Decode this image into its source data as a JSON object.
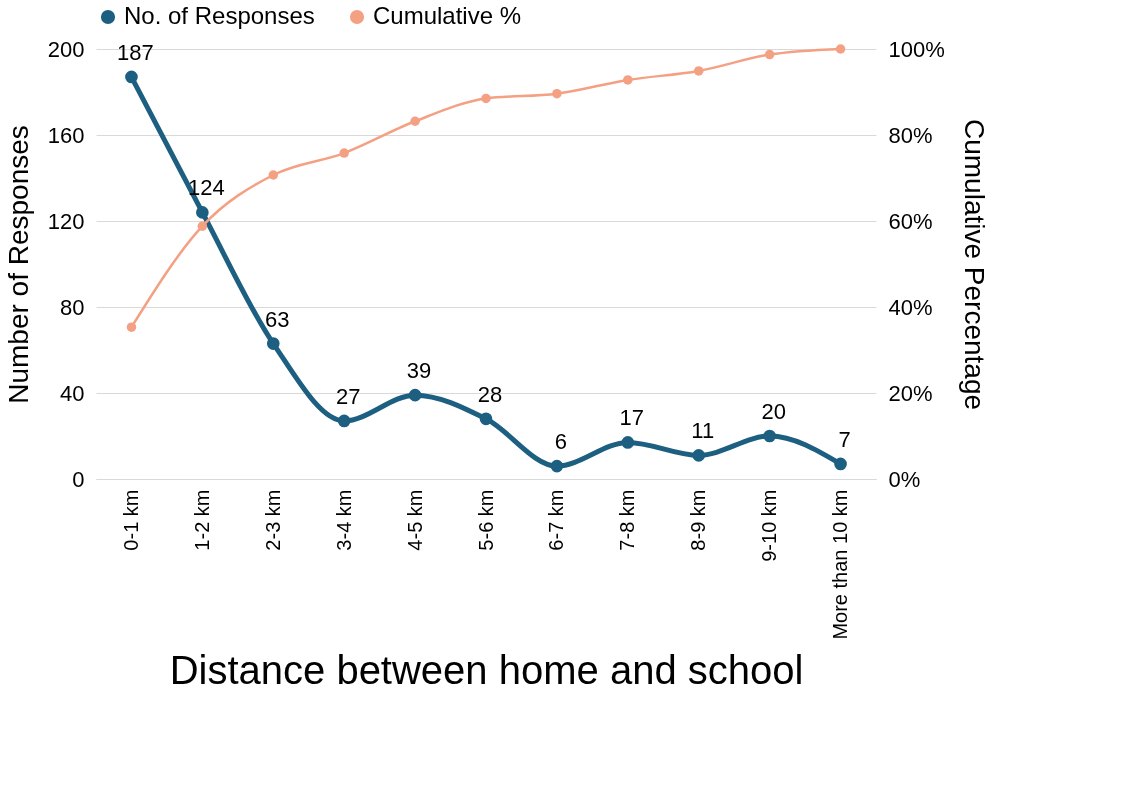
{
  "chart_data": {
    "type": "line",
    "xlabel": "Distance between home and school",
    "ylabel": "Number of Responses",
    "y2label": "Cumulative Percentage",
    "categories": [
      "0-1 km",
      "1-2 km",
      "2-3 km",
      "3-4 km",
      "4-5 km",
      "5-6 km",
      "6-7 km",
      "7-8 km",
      "8-9 km",
      "9-10 km",
      "More than 10 km"
    ],
    "series": [
      {
        "name": "No. of Responses",
        "color": "#1c5f80",
        "values": [
          187,
          124,
          63,
          27,
          39,
          28,
          6,
          17,
          11,
          20,
          7
        ],
        "value_labels": [
          "187",
          "124",
          "63",
          "27",
          "39",
          "28",
          "6",
          "17",
          "11",
          "20",
          "7"
        ]
      },
      {
        "name": "Cumulative %",
        "color": "#f4a083",
        "axis": "y2",
        "values": [
          35.3,
          58.8,
          70.7,
          75.8,
          83.2,
          88.5,
          89.6,
          92.8,
          94.9,
          98.7,
          100
        ]
      }
    ],
    "ylim": [
      0,
      200
    ],
    "yticks": [
      0,
      40,
      80,
      120,
      160,
      200
    ],
    "y2lim": [
      0,
      100
    ],
    "y2ticks": [
      {
        "value": 0,
        "label": "0%"
      },
      {
        "value": 20,
        "label": "20%"
      },
      {
        "value": 40,
        "label": "40%"
      },
      {
        "value": 60,
        "label": "60%"
      },
      {
        "value": 80,
        "label": "80%"
      },
      {
        "value": 100,
        "label": "100%"
      }
    ],
    "grid": "y",
    "legend": "top",
    "marker": "circle",
    "line_style": "solid"
  }
}
